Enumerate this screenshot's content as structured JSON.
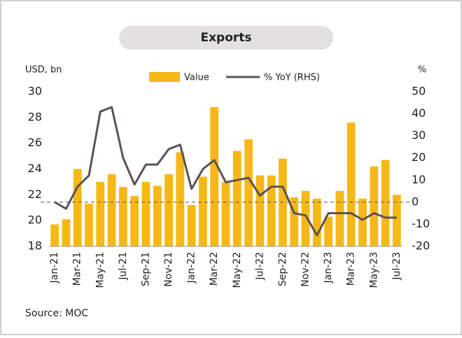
{
  "chart_data": {
    "type": "bar_line",
    "title": "Exports",
    "y_label": "USD, bn",
    "y2_label": "%",
    "source": "Source: MOC",
    "categories": [
      "Jan-21",
      null,
      "Mar-21",
      null,
      "May-21",
      null,
      "Jul-21",
      null,
      "Sep-21",
      null,
      "Nov-21",
      null,
      "Jan-22",
      null,
      "Mar-22",
      null,
      "May-22",
      null,
      "Jul-22",
      null,
      "Sep-22",
      null,
      "Nov-22",
      null,
      "Jan-23",
      null,
      "Mar-23",
      null,
      "May-23",
      null,
      "Jul-23"
    ],
    "series": [
      {
        "name": "Value",
        "type": "bar",
        "color": "#f6b817",
        "values": [
          19.7,
          20.1,
          24.0,
          21.3,
          23.0,
          23.6,
          22.6,
          21.9,
          23.0,
          22.7,
          23.6,
          25.3,
          21.2,
          23.4,
          28.8,
          23.0,
          25.4,
          26.3,
          23.5,
          23.5,
          24.8,
          21.8,
          22.3,
          21.7,
          20.3,
          22.3,
          27.6,
          21.7,
          24.2,
          24.7,
          22.0
        ]
      },
      {
        "name": "% YoY (RHS)",
        "type": "line",
        "axis": "y2",
        "color": "#5b5252",
        "values": [
          0,
          -3,
          7,
          12,
          41,
          43,
          20,
          8,
          17,
          17,
          24,
          26,
          6,
          15,
          19,
          9,
          10,
          11,
          3,
          7,
          7,
          -5,
          -6,
          -15,
          -5,
          -5,
          -5,
          -8,
          -5,
          -7,
          -7
        ]
      }
    ],
    "ylim": [
      18,
      30
    ],
    "yticks": [
      18,
      20,
      22,
      24,
      26,
      28,
      30
    ],
    "y2lim": [
      -20,
      50
    ],
    "y2ticks": [
      -20,
      -10,
      0,
      10,
      20,
      30,
      40,
      50
    ],
    "y2_refline": 0
  }
}
